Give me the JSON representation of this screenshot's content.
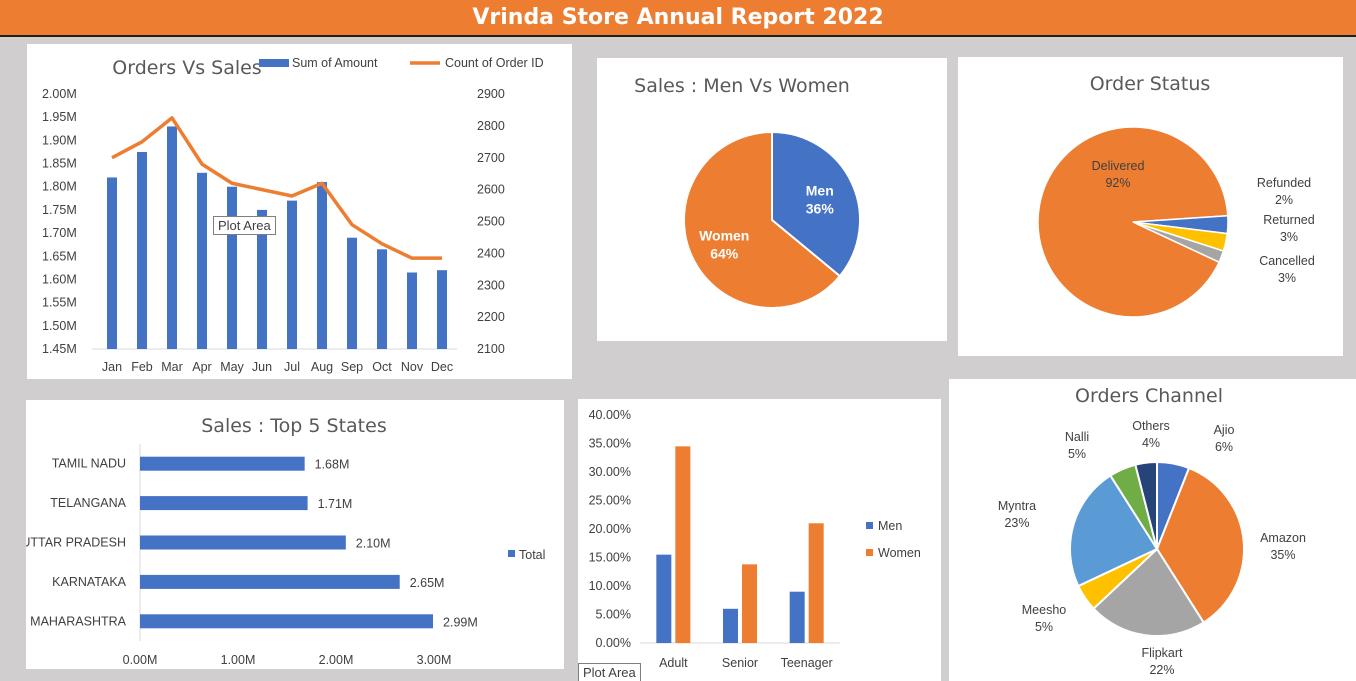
{
  "report_title": "Vrinda Store Annual Report 2022",
  "tooltips": {
    "plot_area_1": "Plot Area",
    "plot_area_2": "Plot Area"
  },
  "colors": {
    "blue": "#4472c4",
    "orange": "#ed7d31",
    "grey": "#a5a5a5",
    "yellow": "#ffc000",
    "lightblue": "#5b9bd5",
    "green": "#70ad47",
    "navy": "#264478"
  },
  "chart_data": [
    {
      "id": "orders_vs_sales",
      "type": "bar",
      "title": "Orders Vs Sales",
      "categories": [
        "Jan",
        "Feb",
        "Mar",
        "Apr",
        "May",
        "Jun",
        "Jul",
        "Aug",
        "Sep",
        "Oct",
        "Nov",
        "Dec"
      ],
      "series": [
        {
          "name": "Sum of Amount",
          "type": "bar",
          "axis": "left",
          "values": [
            1.82,
            1.875,
            1.93,
            1.83,
            1.8,
            1.75,
            1.77,
            1.81,
            1.69,
            1.665,
            1.615,
            1.62
          ]
        },
        {
          "name": "Count of Order ID",
          "type": "line",
          "axis": "right",
          "values": [
            2700,
            2750,
            2825,
            2680,
            2620,
            2600,
            2580,
            2620,
            2490,
            2430,
            2385,
            2385
          ]
        }
      ],
      "y_left": {
        "ylim": [
          1.45,
          2.0
        ],
        "ticks": [
          "1.45M",
          "1.50M",
          "1.55M",
          "1.60M",
          "1.65M",
          "1.70M",
          "1.75M",
          "1.80M",
          "1.85M",
          "1.90M",
          "1.95M",
          "2.00M"
        ]
      },
      "y_right": {
        "ylim": [
          2100,
          2900
        ],
        "ticks": [
          "2100",
          "2200",
          "2300",
          "2400",
          "2500",
          "2600",
          "2700",
          "2800",
          "2900"
        ]
      },
      "legend": "top"
    },
    {
      "id": "sales_men_women",
      "type": "pie",
      "title": "Sales : Men Vs Women",
      "slices": [
        {
          "label": "Men",
          "value": 36,
          "text": "36%"
        },
        {
          "label": "Women",
          "value": 64,
          "text": "64%"
        }
      ]
    },
    {
      "id": "order_status",
      "type": "pie",
      "title": "Order Status",
      "slices": [
        {
          "label": "Delivered",
          "value": 92,
          "text": "92%"
        },
        {
          "label": "Refunded",
          "value": 2,
          "text": "2%"
        },
        {
          "label": "Returned",
          "value": 3,
          "text": "3%"
        },
        {
          "label": "Cancelled",
          "value": 3,
          "text": "3%"
        }
      ]
    },
    {
      "id": "top5_states",
      "type": "bar",
      "orientation": "horizontal",
      "title": "Sales : Top 5 States",
      "categories": [
        "TAMIL NADU",
        "TELANGANA",
        "UTTAR PRADESH",
        "KARNATAKA",
        "MAHARASHTRA"
      ],
      "series": [
        {
          "name": "Total",
          "values": [
            1.68,
            1.71,
            2.1,
            2.65,
            2.99
          ],
          "labels": [
            "1.68M",
            "1.71M",
            "2.10M",
            "2.65M",
            "2.99M"
          ]
        }
      ],
      "xlim": [
        0,
        3.5
      ],
      "x_ticks": [
        "0.00M",
        "1.00M",
        "2.00M",
        "3.00M"
      ],
      "legend": "right"
    },
    {
      "id": "age_gender",
      "type": "bar",
      "categories": [
        "Adult",
        "Senior",
        "Teenager"
      ],
      "series": [
        {
          "name": "Men",
          "values": [
            15.5,
            6.0,
            9.0
          ]
        },
        {
          "name": "Women",
          "values": [
            34.5,
            13.8,
            21.0
          ]
        }
      ],
      "ylim": [
        0,
        40
      ],
      "y_ticks": [
        "0.00%",
        "5.00%",
        "10.00%",
        "15.00%",
        "20.00%",
        "25.00%",
        "30.00%",
        "35.00%",
        "40.00%"
      ],
      "legend": "right"
    },
    {
      "id": "orders_channel",
      "type": "pie",
      "title": "Orders Channel",
      "slices": [
        {
          "label": "Ajio",
          "value": 6,
          "text": "6%"
        },
        {
          "label": "Amazon",
          "value": 35,
          "text": "35%"
        },
        {
          "label": "Flipkart",
          "value": 22,
          "text": "22%"
        },
        {
          "label": "Meesho",
          "value": 5,
          "text": "5%"
        },
        {
          "label": "Myntra",
          "value": 23,
          "text": "23%"
        },
        {
          "label": "Nalli",
          "value": 5,
          "text": "5%"
        },
        {
          "label": "Others",
          "value": 4,
          "text": "4%"
        }
      ]
    }
  ]
}
